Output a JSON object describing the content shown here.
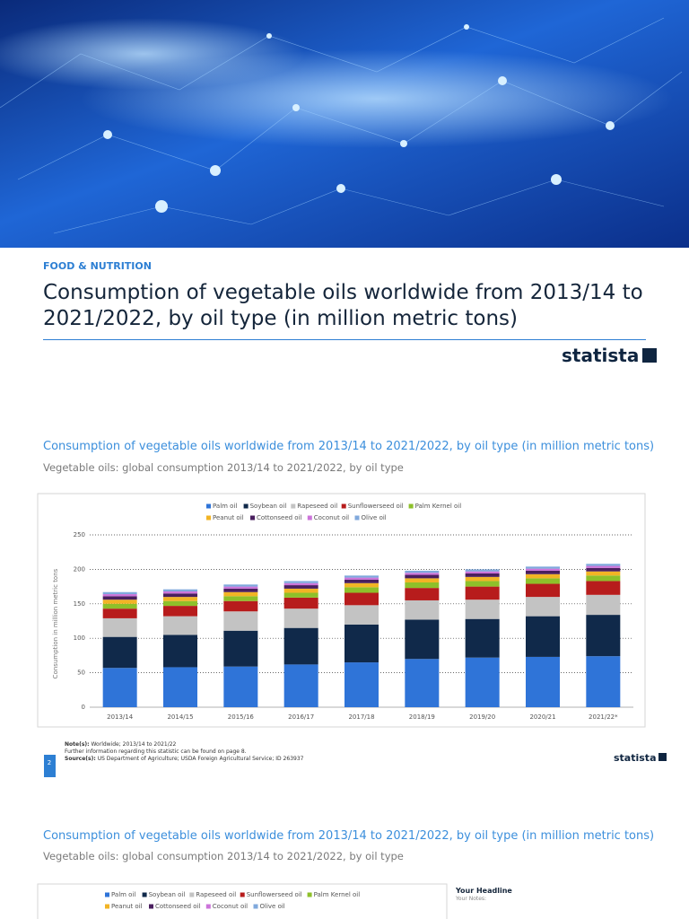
{
  "header": {
    "category": "FOOD & NUTRITION",
    "title": "Consumption of vegetable oils worldwide from 2013/14 to 2021/2022, by oil type (in million metric tons)",
    "logo": "statista"
  },
  "chart_data": {
    "type": "bar",
    "stacked": true,
    "title": "Consumption of vegetable oils worldwide from 2013/14 to 2021/2022, by oil type (in million metric tons)",
    "subtitle": "Vegetable oils: global consumption 2013/14 to 2021/2022, by oil type",
    "y_label": "Consumption in million metric tons",
    "categories": [
      "2013/14",
      "2014/15",
      "2015/16",
      "2016/17",
      "2017/18",
      "2018/19",
      "2019/20",
      "2020/21",
      "2021/22*"
    ],
    "series": [
      {
        "name": "Palm oil",
        "color": "#2f74d8",
        "values": [
          57,
          58,
          59,
          62,
          65,
          70,
          72,
          73,
          74
        ]
      },
      {
        "name": "Soybean oil",
        "color": "#10294a",
        "values": [
          45,
          47,
          52,
          53,
          55,
          57,
          56,
          59,
          60
        ]
      },
      {
        "name": "Rapeseed oil",
        "color": "#c3c3c3",
        "values": [
          27,
          27,
          28,
          28,
          28,
          28,
          28,
          28,
          29
        ]
      },
      {
        "name": "Sunflowerseed oil",
        "color": "#b71c1c",
        "values": [
          14,
          15,
          15,
          16,
          18,
          18,
          19,
          19,
          20
        ]
      },
      {
        "name": "Palm Kernel oil",
        "color": "#8ec02a",
        "values": [
          7,
          7,
          7,
          7,
          8,
          8,
          8,
          8,
          8
        ]
      },
      {
        "name": "Peanut oil",
        "color": "#f2b425",
        "values": [
          6,
          6,
          6,
          6,
          6,
          6,
          6,
          6,
          6
        ]
      },
      {
        "name": "Cottonseed oil",
        "color": "#4a1f5f",
        "values": [
          5,
          5,
          5,
          5,
          5,
          5,
          5,
          5,
          5
        ]
      },
      {
        "name": "Coconut oil",
        "color": "#cc74da",
        "values": [
          3,
          3,
          3,
          3,
          3,
          3,
          3,
          3,
          3
        ]
      },
      {
        "name": "Olive oil",
        "color": "#80a9dc",
        "values": [
          3,
          3,
          3,
          3,
          3,
          3,
          3,
          3,
          3
        ]
      }
    ],
    "ylim": [
      0,
      250
    ],
    "yticks": [
      0,
      50,
      100,
      150,
      200,
      250
    ],
    "grid": true
  },
  "footer": {
    "notes_label": "Note(s):",
    "notes": "Worldwide; 2013/14 to 2021/22",
    "further": "Further information regarding this statistic can be found on page 8.",
    "source_label": "Source(s):",
    "source": "US Department of Agriculture; USDA Foreign Agricultural Service; ID 263937",
    "page": "2",
    "logo": "statista"
  },
  "second_section": {
    "title": "Consumption of vegetable oils worldwide from 2013/14 to 2021/2022, by oil type (in million metric tons)",
    "subtitle": "Vegetable oils: global consumption 2013/14 to 2021/2022, by oil type",
    "legend": [
      "Palm oil",
      "Soybean oil",
      "Rapeseed oil",
      "Sunflowerseed oil",
      "Palm Kernel oil",
      "Peanut oil",
      "Cottonseed oil",
      "Coconut oil",
      "Olive oil"
    ],
    "headline": "Your Headline",
    "notes_label": "Your Notes:"
  }
}
